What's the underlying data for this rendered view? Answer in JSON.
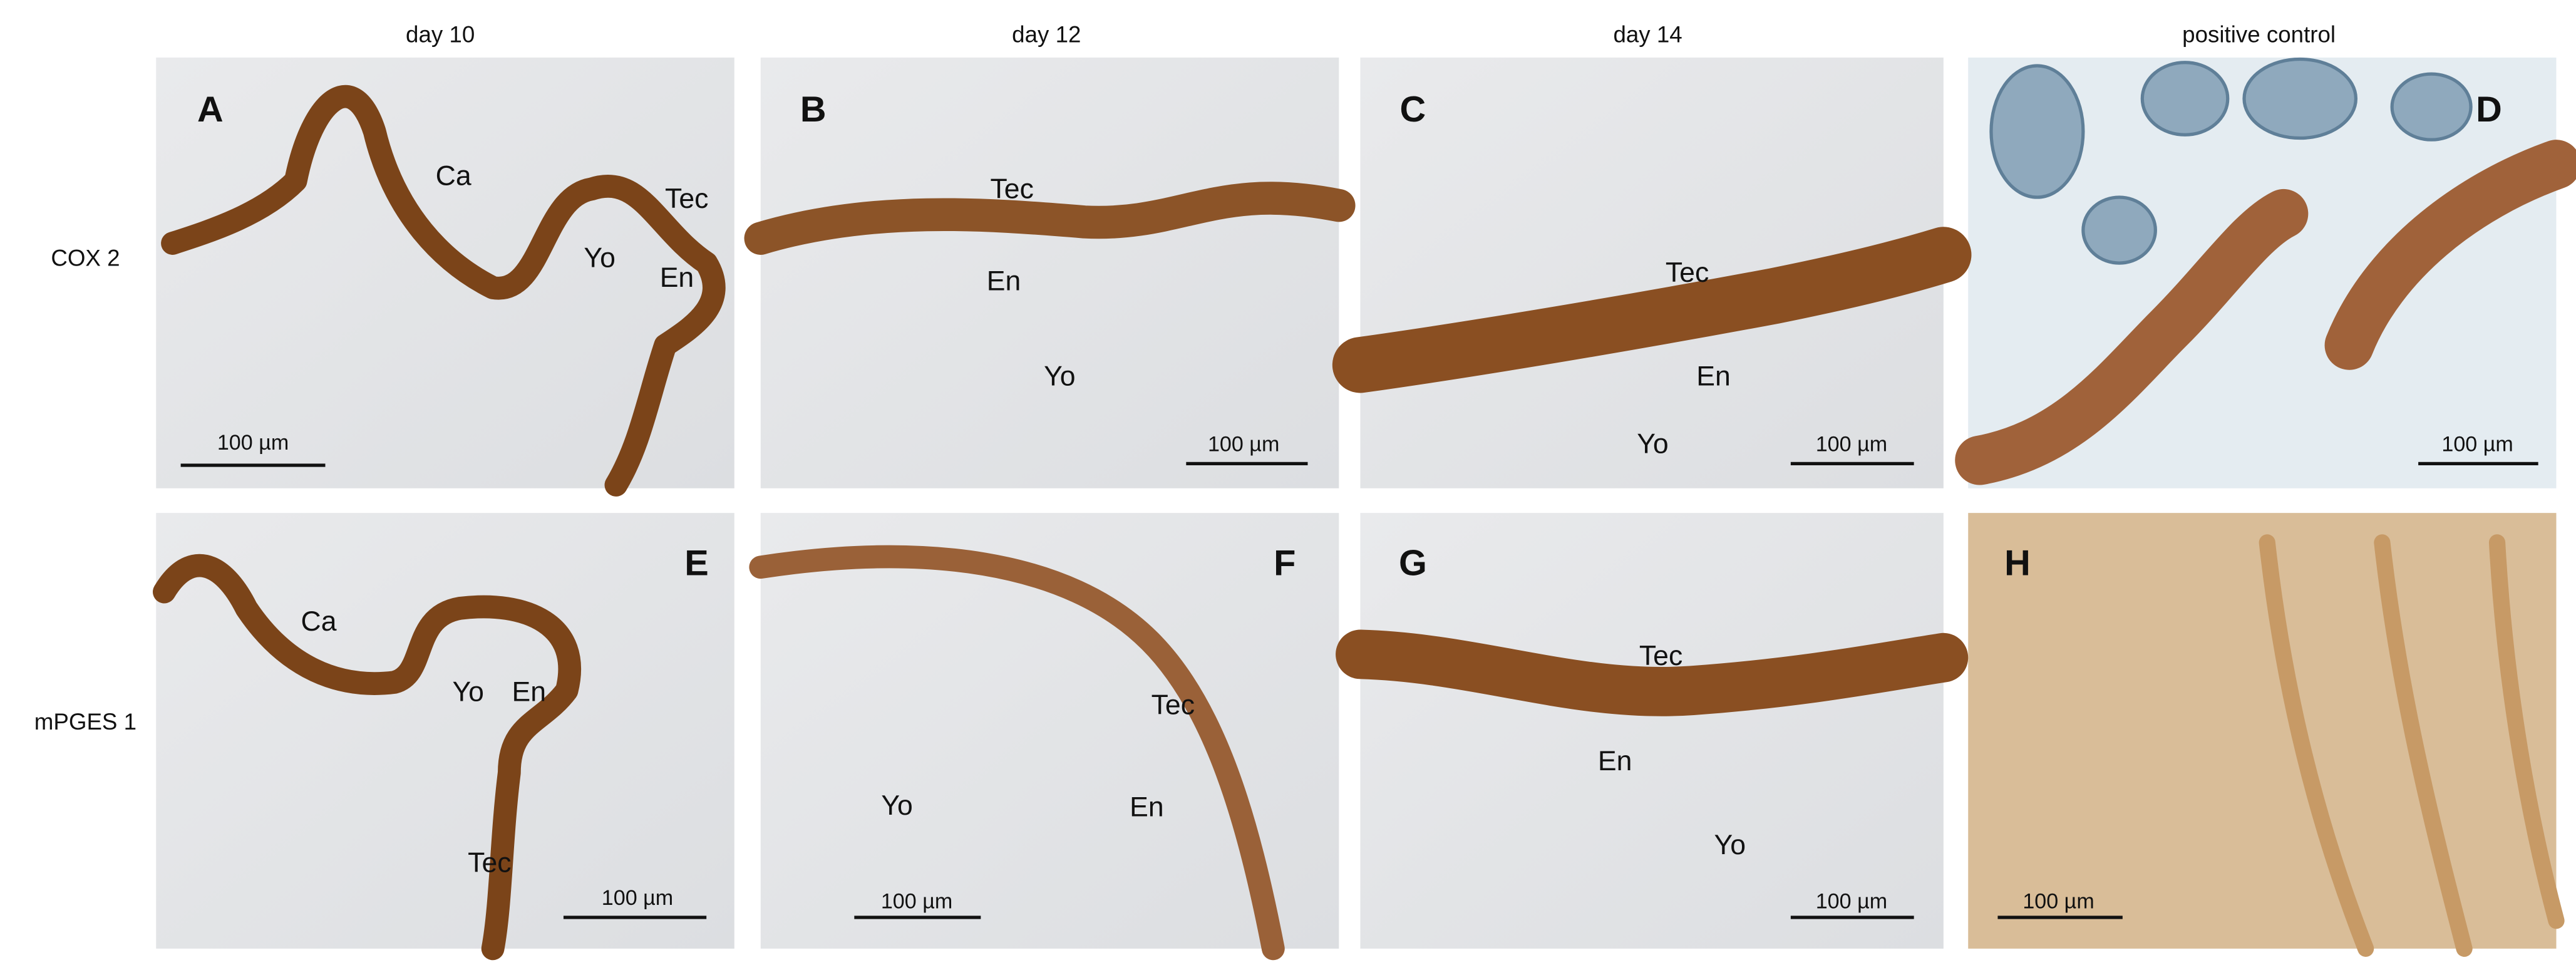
{
  "headers": [
    "day 10",
    "day 12",
    "day 14",
    "positive control"
  ],
  "rows": [
    "COX 2",
    "mPGES 1"
  ],
  "panels": [
    {
      "letter": "A",
      "labels": [
        "Ca",
        "Yo",
        "Tec",
        "En"
      ],
      "scale_bar": "100 µm"
    },
    {
      "letter": "B",
      "labels": [
        "Tec",
        "En",
        "Yo"
      ],
      "scale_bar": "100 µm"
    },
    {
      "letter": "C",
      "labels": [
        "Tec",
        "En",
        "Yo"
      ],
      "scale_bar": "100 µm"
    },
    {
      "letter": "D",
      "labels": [],
      "scale_bar": "100 µm"
    },
    {
      "letter": "E",
      "labels": [
        "Ca",
        "Yo",
        "En",
        "Tec"
      ],
      "scale_bar": "100 µm"
    },
    {
      "letter": "F",
      "labels": [
        "Tec",
        "En",
        "Yo"
      ],
      "scale_bar": "100 µm"
    },
    {
      "letter": "G",
      "labels": [
        "Tec",
        "En",
        "Yo"
      ],
      "scale_bar": "100 µm"
    },
    {
      "letter": "H",
      "labels": [],
      "scale_bar": "100 µm"
    }
  ]
}
